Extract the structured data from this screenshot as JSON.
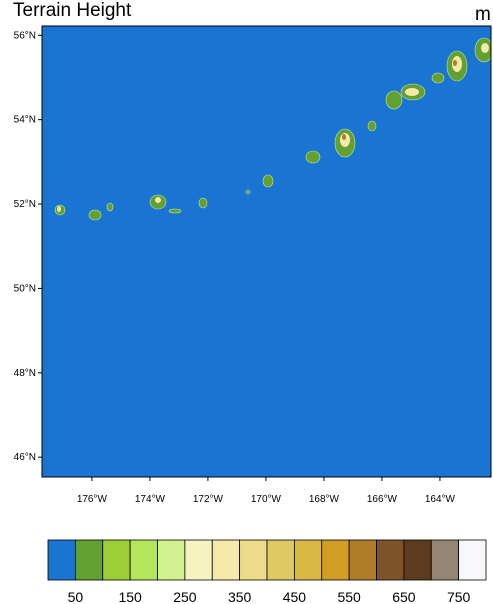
{
  "map": {
    "title": "Terrain Height",
    "units": "m",
    "lonlim": [
      -177.72,
      -162.24
    ],
    "latlim": [
      45.53,
      56.22
    ],
    "latticks": [
      {
        "value": 56,
        "label": "56°N"
      },
      {
        "value": 54,
        "label": "54°N"
      },
      {
        "value": 52,
        "label": "52°N"
      },
      {
        "value": 50,
        "label": "50°N"
      },
      {
        "value": 48,
        "label": "48°N"
      },
      {
        "value": 46,
        "label": "46°N"
      }
    ],
    "lonticks": [
      {
        "value": -176,
        "label": "176°W"
      },
      {
        "value": -174,
        "label": "174°W"
      },
      {
        "value": -172,
        "label": "172°W"
      },
      {
        "value": -170,
        "label": "170°W"
      },
      {
        "value": -168,
        "label": "168°W"
      },
      {
        "value": -166,
        "label": "166°W"
      },
      {
        "value": -164,
        "label": "164°W"
      }
    ],
    "ocean_color": "#1a74d2"
  },
  "colorbar": {
    "colors": [
      "#1a74d2",
      "#62a032",
      "#9dcf39",
      "#b4e55b",
      "#d2f08e",
      "#f5f3c0",
      "#f4e9a9",
      "#ecdc8a",
      "#dfc962",
      "#d8b842",
      "#d19d25",
      "#ae7b26",
      "#7f5329",
      "#5c3b1e",
      "#958574",
      "#f8f8fc"
    ],
    "labels": [
      50,
      150,
      250,
      350,
      450,
      550,
      650,
      750
    ]
  }
}
